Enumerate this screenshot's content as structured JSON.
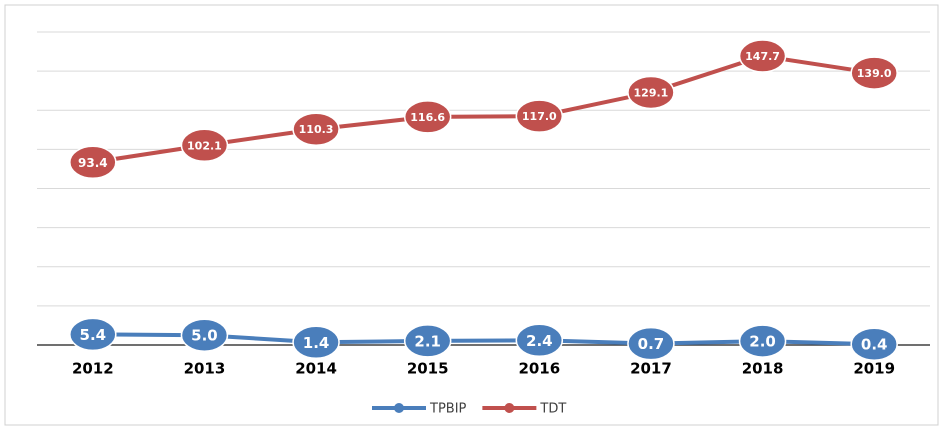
{
  "chart_data": {
    "type": "line",
    "categories": [
      "2012",
      "2013",
      "2014",
      "2015",
      "2016",
      "2017",
      "2018",
      "2019"
    ],
    "series": [
      {
        "name": "TPBIP",
        "color": "#4a7ebb",
        "values": [
          5.4,
          5.0,
          1.4,
          2.1,
          2.4,
          0.7,
          2.0,
          0.4
        ],
        "value_labels": [
          "5.4",
          "5.0",
          "1.4",
          "2.1",
          "2.4",
          "0.7",
          "2.0",
          "0.4"
        ]
      },
      {
        "name": "TDT",
        "color": "#c0504d",
        "values": [
          93.4,
          102.1,
          110.3,
          116.6,
          117.0,
          129.1,
          147.7,
          139.0
        ],
        "value_labels": [
          "93.4",
          "102.1",
          "110.3",
          "116.6",
          "117.0",
          "129.1",
          "147.7",
          "139.0"
        ]
      }
    ],
    "ylim": [
      0,
      160
    ],
    "yticks": [
      0,
      20,
      40,
      60,
      80,
      100,
      120,
      140,
      160
    ],
    "grid": true,
    "legend": "bottom"
  }
}
